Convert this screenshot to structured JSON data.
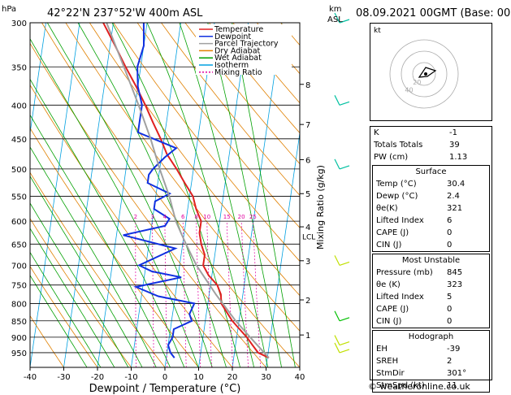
{
  "header": {
    "location": "42°22'N  237°52'W  400m  ASL",
    "datetime": "08.09.2021  00GMT  (Base: 00)",
    "p_unit": "hPa",
    "alt_unit_km": "km",
    "alt_unit_asl": "ASL"
  },
  "chart_data": {
    "type": "line",
    "xlabel": "Dewpoint / Temperature (°C)",
    "ylabel_right": "Mixing Ratio (g/kg)",
    "xlim": [
      -40,
      40
    ],
    "ylim_hpa": [
      1000,
      300
    ],
    "x_ticks": [
      -40,
      -30,
      -20,
      -10,
      0,
      10,
      20,
      30,
      40
    ],
    "pressure_levels": [
      300,
      350,
      400,
      450,
      500,
      550,
      600,
      650,
      700,
      750,
      800,
      850,
      900,
      950
    ],
    "km_ticks": [
      {
        "km": "8",
        "p": 372
      },
      {
        "km": "7",
        "p": 428
      },
      {
        "km": "6",
        "p": 484
      },
      {
        "km": "5",
        "p": 545
      },
      {
        "km": "4",
        "p": 612
      },
      {
        "km": "3",
        "p": 689
      },
      {
        "km": "2",
        "p": 790
      },
      {
        "km": "1",
        "p": 893
      }
    ],
    "lcl_label": "LCL",
    "lcl_p": 632,
    "mixing_ratio_labels": [
      "2",
      "3",
      "4",
      "6",
      "8",
      "10",
      "15",
      "20",
      "25"
    ],
    "mixing_ratio_values": [
      2,
      3,
      4,
      6,
      8,
      10,
      15,
      20,
      25
    ],
    "legend": [
      "Temperature",
      "Dewpoint",
      "Parcel Trajectory",
      "Dry Adiabat",
      "Wet Adiabat",
      "Isotherm",
      "Mixing Ratio"
    ],
    "series": [
      {
        "name": "Temperature",
        "points": [
          [
            30.4,
            967
          ],
          [
            27,
            950
          ],
          [
            25,
            925
          ],
          [
            23,
            900
          ],
          [
            20,
            870
          ],
          [
            18,
            850
          ],
          [
            16,
            825
          ],
          [
            14,
            800
          ],
          [
            13.5,
            775
          ],
          [
            12,
            750
          ],
          [
            9,
            725
          ],
          [
            7,
            700
          ],
          [
            7,
            675
          ],
          [
            5.5,
            650
          ],
          [
            4.5,
            625
          ],
          [
            4.5,
            600
          ],
          [
            2.5,
            575
          ],
          [
            1,
            550
          ],
          [
            -2,
            525
          ],
          [
            -5,
            500
          ],
          [
            -8.5,
            475
          ],
          [
            -11,
            450
          ],
          [
            -14,
            425
          ],
          [
            -17,
            400
          ],
          [
            -20.5,
            375
          ],
          [
            -24.5,
            350
          ],
          [
            -28.5,
            325
          ],
          [
            -33,
            300
          ]
        ]
      },
      {
        "name": "Dewpoint",
        "points": [
          [
            2.4,
            967
          ],
          [
            1,
            950
          ],
          [
            0,
            925
          ],
          [
            1,
            900
          ],
          [
            1,
            875
          ],
          [
            6,
            850
          ],
          [
            5,
            830
          ],
          [
            6,
            800
          ],
          [
            -5,
            780
          ],
          [
            -12,
            755
          ],
          [
            1,
            730
          ],
          [
            -8,
            715
          ],
          [
            -12,
            700
          ],
          [
            -2,
            660
          ],
          [
            -18,
            630
          ],
          [
            -6,
            610
          ],
          [
            -5,
            595
          ],
          [
            -10,
            575
          ],
          [
            -10,
            560
          ],
          [
            -6,
            545
          ],
          [
            -13,
            525
          ],
          [
            -13,
            510
          ],
          [
            -12,
            500
          ],
          [
            -9,
            480
          ],
          [
            -6,
            465
          ],
          [
            -18,
            440
          ],
          [
            -18,
            400
          ],
          [
            -20,
            375
          ],
          [
            -21,
            350
          ],
          [
            -20,
            325
          ],
          [
            -21,
            300
          ]
        ]
      },
      {
        "name": "Parcel Trajectory",
        "points": [
          [
            30.4,
            967
          ],
          [
            24,
            900
          ],
          [
            19,
            850
          ],
          [
            12,
            775
          ],
          [
            5,
            700
          ],
          [
            3,
            675
          ],
          [
            1,
            650
          ],
          [
            -1,
            625
          ],
          [
            -3,
            600
          ],
          [
            -6,
            550
          ],
          [
            -10,
            500
          ],
          [
            -14,
            450
          ],
          [
            -19,
            400
          ],
          [
            -25,
            350
          ],
          [
            -32,
            300
          ]
        ]
      }
    ]
  },
  "hodograph": {
    "title": "kt",
    "ring_labels": [
      "20",
      "40"
    ]
  },
  "indices": [
    {
      "label": "K",
      "value": "-1"
    },
    {
      "label": "Totals Totals",
      "value": "39"
    },
    {
      "label": "PW (cm)",
      "value": "1.13"
    }
  ],
  "surface": {
    "title": "Surface",
    "rows": [
      {
        "label": "Temp (°C)",
        "value": "30.4"
      },
      {
        "label": "Dewp (°C)",
        "value": "2.4"
      },
      {
        "label": "θe(K)",
        "value": "321"
      },
      {
        "label": "Lifted Index",
        "value": "6"
      },
      {
        "label": "CAPE (J)",
        "value": "0"
      },
      {
        "label": "CIN (J)",
        "value": "0"
      }
    ]
  },
  "most_unstable": {
    "title": "Most Unstable",
    "rows": [
      {
        "label": "Pressure (mb)",
        "value": "845"
      },
      {
        "label": "θe (K)",
        "value": "323"
      },
      {
        "label": "Lifted Index",
        "value": "5"
      },
      {
        "label": "CAPE (J)",
        "value": "0"
      },
      {
        "label": "CIN (J)",
        "value": "0"
      }
    ]
  },
  "hodograph_table": {
    "title": "Hodograph",
    "rows": [
      {
        "label": "EH",
        "value": "-39"
      },
      {
        "label": "SREH",
        "value": "2"
      },
      {
        "label": "StmDir",
        "value": "301°"
      },
      {
        "label": "StmSpd (kt)",
        "value": "11"
      }
    ]
  },
  "credit": "© weatheronline.co.uk",
  "colors": {
    "temperature": "#e02020",
    "dewpoint": "#1030e0",
    "parcel": "#a0a0a0",
    "dry_adiabat": "#e08000",
    "wet_adiabat": "#00a000",
    "isotherm": "#00a0e0",
    "mixing_ratio": "#e000a0"
  }
}
